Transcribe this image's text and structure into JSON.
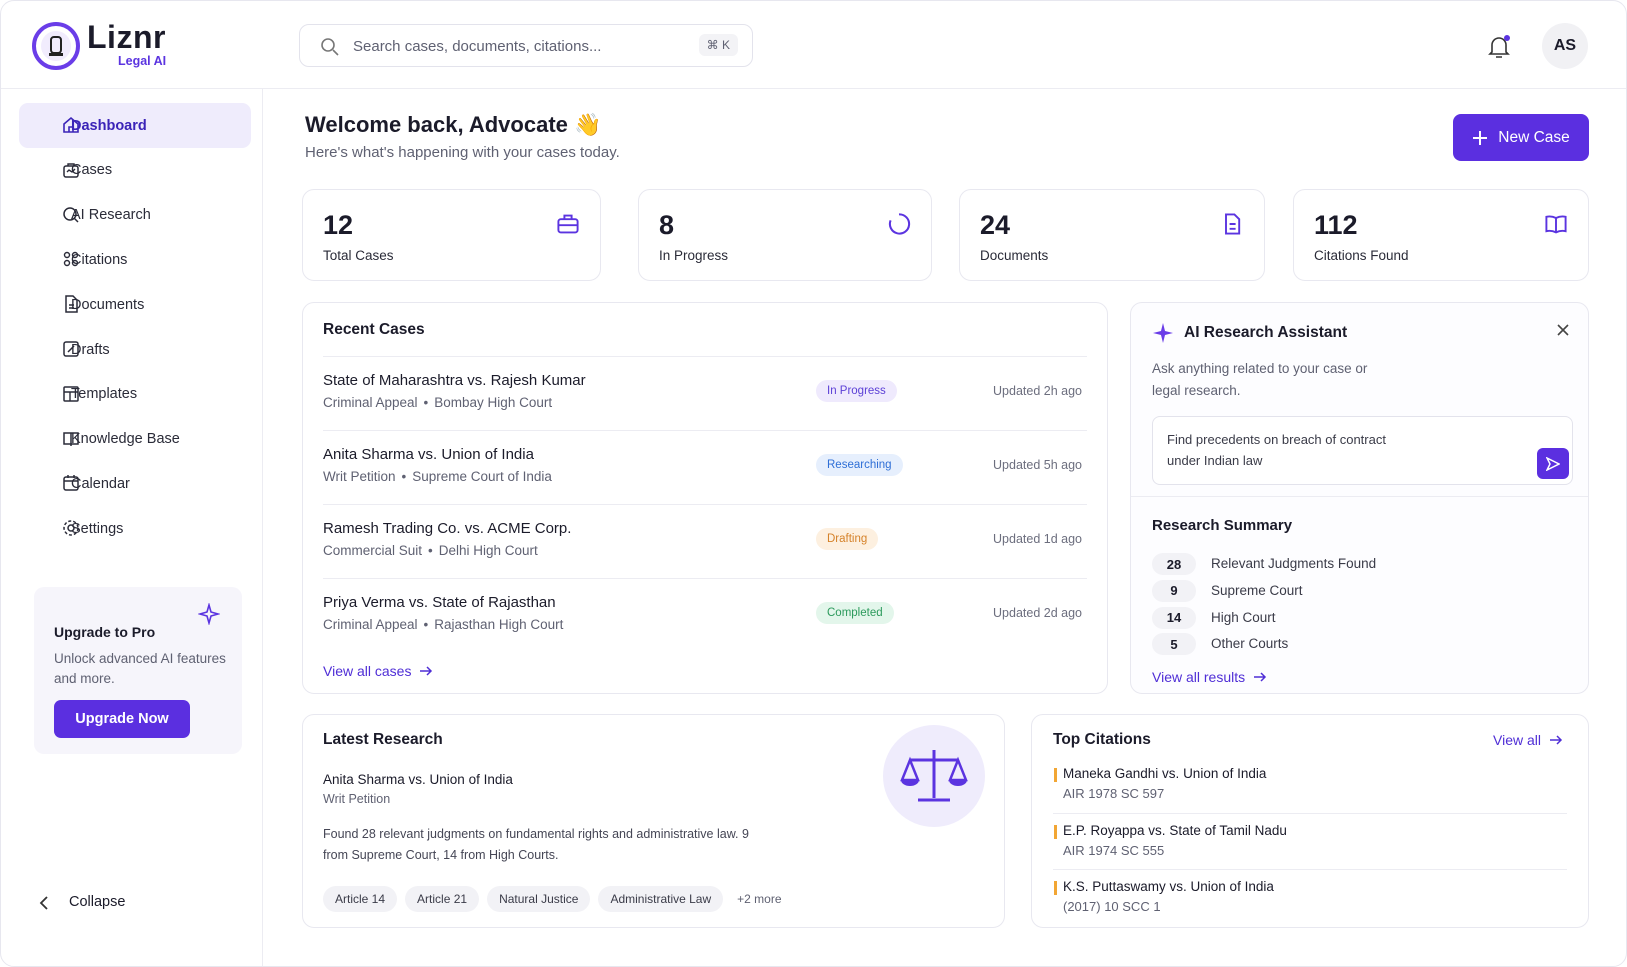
{
  "header": {
    "brand": "Liznr",
    "tagline": "Legal AI",
    "search_placeholder": "Search cases, documents, citations...",
    "search_shortcut": "⌘ K",
    "avatar": "AS"
  },
  "sidebar": {
    "nav": [
      "Dashboard",
      "Cases",
      "AI Research",
      "Citations",
      "Documents",
      "Drafts",
      "Templates",
      "Knowledge Base",
      "Calendar",
      "Settings"
    ],
    "upgrade": {
      "title": "Upgrade to Pro",
      "text": "Unlock advanced AI features and more.",
      "button": "Upgrade Now"
    },
    "collapse": "Collapse"
  },
  "welcome": {
    "title": "Welcome back, Advocate 👋",
    "subtitle": "Here's what's happening with your cases today."
  },
  "new_case": "New Case",
  "stats": [
    {
      "value": 12,
      "label": "Total Cases"
    },
    {
      "value": 8,
      "label": "In Progress"
    },
    {
      "value": 24,
      "label": "Documents"
    },
    {
      "value": 112,
      "label": "Citations Found"
    }
  ],
  "recent_cases": {
    "title": "Recent Cases",
    "rows": [
      {
        "name": "State of Maharashtra vs. Rajesh Kumar",
        "type": "Criminal Appeal",
        "court": "Bombay High Court",
        "status": "In Progress",
        "updated": "Updated 2h ago"
      },
      {
        "name": "Anita Sharma vs. Union of India",
        "type": "Writ Petition",
        "court": "Supreme Court of India",
        "status": "Researching",
        "updated": "Updated 5h ago"
      },
      {
        "name": "Ramesh Trading Co. vs. ACME Corp.",
        "type": "Commercial Suit",
        "court": "Delhi High Court",
        "status": "Drafting",
        "updated": "Updated 1d ago"
      },
      {
        "name": "Priya Verma vs. State of Rajasthan",
        "type": "Criminal Appeal",
        "court": "Rajasthan High Court",
        "status": "Completed",
        "updated": "Updated 2d ago"
      }
    ],
    "link": "View all cases"
  },
  "assistant": {
    "title": "AI Research Assistant",
    "description": "Ask anything related to your case or legal research.",
    "query": "Find precedents on breach of contract under Indian law",
    "summary_title": "Research Summary",
    "summary": [
      {
        "count": 28,
        "label": "Relevant Judgments Found"
      },
      {
        "count": 9,
        "label": "Supreme Court"
      },
      {
        "count": 14,
        "label": "High Court"
      },
      {
        "count": 5,
        "label": "Other Courts"
      }
    ],
    "link": "View all results"
  },
  "latest_research": {
    "title": "Latest Research",
    "case": "Anita Sharma vs. Union of India",
    "type": "Writ Petition",
    "text": "Found 28 relevant judgments on fundamental rights and administrative law. 9 from Supreme Court, 14 from High Courts.",
    "tags": [
      "Article 14",
      "Article 21",
      "Natural Justice",
      "Administrative Law"
    ],
    "more": "+2 more"
  },
  "top_citations": {
    "title": "Top Citations",
    "link": "View all",
    "items": [
      {
        "case": "Maneka Gandhi vs. Union of India",
        "citation": "AIR 1978 SC 597"
      },
      {
        "case": "E.P. Royappa vs. State of Tamil Nadu",
        "citation": "AIR 1974 SC 555"
      },
      {
        "case": "K.S. Puttaswamy vs. Union of India",
        "citation": "(2017) 10 SCC 1"
      }
    ]
  }
}
